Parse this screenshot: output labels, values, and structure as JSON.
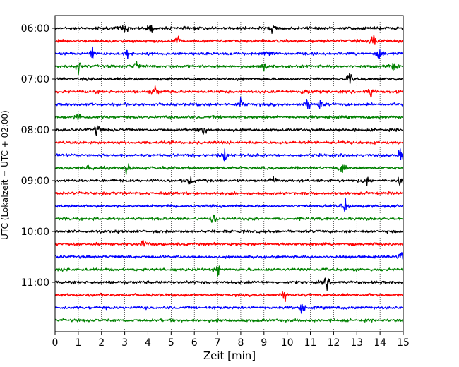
{
  "chart_data": {
    "type": "line",
    "title": "",
    "xlabel": "Zeit  [min]",
    "ylabel": "UTC (Lokalzeit = UTC + 02:00)",
    "xlim": [
      0,
      15
    ],
    "x_ticks": [
      "0",
      "1",
      "2",
      "3",
      "4",
      "5",
      "6",
      "7",
      "8",
      "9",
      "10",
      "11",
      "12",
      "13",
      "14",
      "15"
    ],
    "y_ticks": [
      "06:00",
      "07:00",
      "08:00",
      "09:00",
      "10:00",
      "11:00"
    ],
    "grid": "vertical dotted at each minute",
    "legend": "none",
    "trace_interval_min": 15,
    "trace_count": 24,
    "color_cycle": [
      "#000000",
      "#ff0000",
      "#0000ff",
      "#008000"
    ],
    "traces": [
      {
        "start": "06:00",
        "color": "#000000",
        "events_min": [
          3.0,
          4.1,
          9.4
        ]
      },
      {
        "start": "06:15",
        "color": "#ff0000",
        "events_min": [
          5.3,
          13.7
        ]
      },
      {
        "start": "06:30",
        "color": "#0000ff",
        "events_min": [
          1.6,
          3.1,
          9.2,
          14.0
        ]
      },
      {
        "start": "06:45",
        "color": "#008000",
        "events_min": [
          1.0,
          3.5,
          9.0,
          14.6
        ]
      },
      {
        "start": "07:00",
        "color": "#000000",
        "events_min": [
          12.7
        ]
      },
      {
        "start": "07:15",
        "color": "#ff0000",
        "events_min": [
          4.3,
          10.8,
          13.6
        ]
      },
      {
        "start": "07:30",
        "color": "#0000ff",
        "events_min": [
          8.0,
          10.9,
          11.4
        ]
      },
      {
        "start": "07:45",
        "color": "#008000",
        "events_min": [
          1.0
        ]
      },
      {
        "start": "08:00",
        "color": "#000000",
        "events_min": [
          1.8,
          6.4
        ]
      },
      {
        "start": "08:15",
        "color": "#ff0000",
        "events_min": []
      },
      {
        "start": "08:30",
        "color": "#0000ff",
        "events_min": [
          7.3,
          14.9
        ]
      },
      {
        "start": "08:45",
        "color": "#008000",
        "events_min": [
          1.5,
          3.1,
          12.4
        ]
      },
      {
        "start": "09:00",
        "color": "#000000",
        "events_min": [
          5.8,
          9.4,
          13.4,
          14.9
        ]
      },
      {
        "start": "09:15",
        "color": "#ff0000",
        "events_min": []
      },
      {
        "start": "09:30",
        "color": "#0000ff",
        "events_min": [
          12.5
        ]
      },
      {
        "start": "09:45",
        "color": "#008000",
        "events_min": [
          6.8
        ]
      },
      {
        "start": "10:00",
        "color": "#000000",
        "events_min": []
      },
      {
        "start": "10:15",
        "color": "#ff0000",
        "events_min": [
          3.8
        ]
      },
      {
        "start": "10:30",
        "color": "#0000ff",
        "events_min": [
          14.9
        ]
      },
      {
        "start": "10:45",
        "color": "#008000",
        "events_min": [
          7.0
        ]
      },
      {
        "start": "11:00",
        "color": "#000000",
        "events_min": [
          11.7
        ]
      },
      {
        "start": "11:15",
        "color": "#ff0000",
        "events_min": [
          9.9
        ]
      },
      {
        "start": "11:30",
        "color": "#0000ff",
        "events_min": [
          10.6
        ]
      },
      {
        "start": "11:45",
        "color": "#008000",
        "events_min": []
      }
    ]
  }
}
